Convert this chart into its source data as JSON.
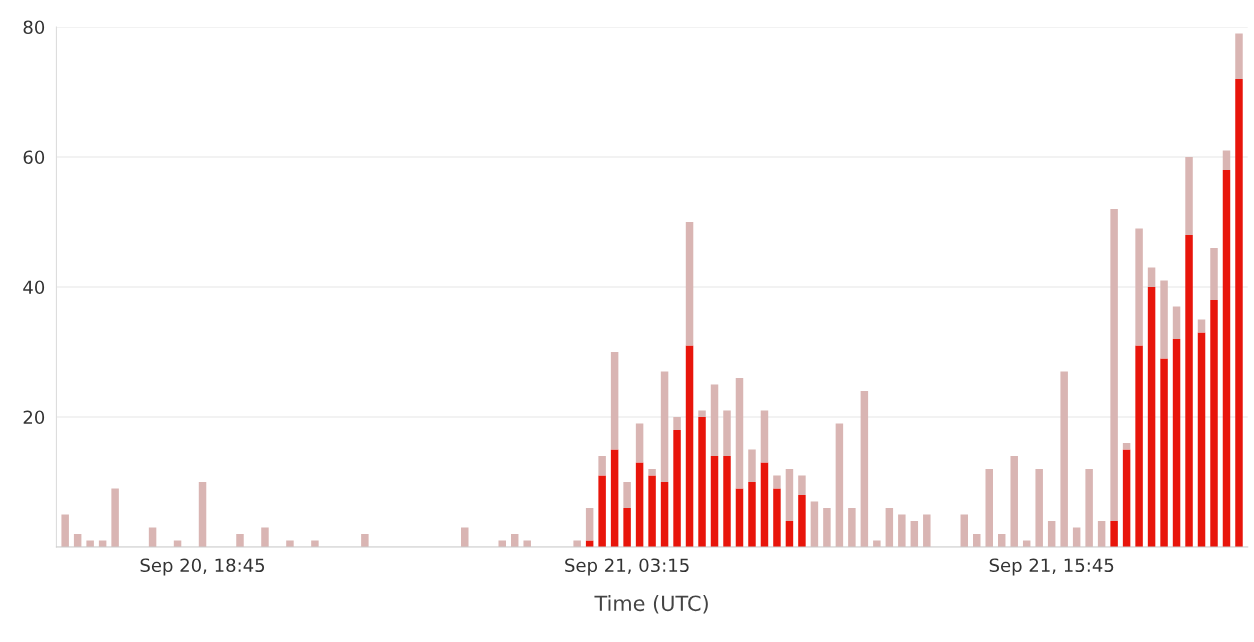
{
  "chart_data": {
    "type": "bar",
    "stacked": true,
    "xlabel": "Time (UTC)",
    "categories": [
      null,
      null,
      null,
      null,
      null,
      null,
      null,
      null,
      null,
      null,
      null,
      "Sep 20, 18:45",
      null,
      null,
      null,
      null,
      null,
      null,
      null,
      null,
      null,
      null,
      null,
      null,
      null,
      null,
      null,
      null,
      null,
      null,
      null,
      null,
      null,
      null,
      null,
      null,
      null,
      null,
      null,
      null,
      null,
      null,
      null,
      null,
      null,
      "Sep 21, 03:15",
      null,
      null,
      null,
      null,
      null,
      null,
      null,
      null,
      null,
      null,
      null,
      null,
      null,
      null,
      null,
      null,
      null,
      null,
      null,
      null,
      null,
      null,
      null,
      null,
      null,
      null,
      null,
      null,
      null,
      null,
      null,
      null,
      null,
      "Sep 21, 15:45",
      null,
      null,
      null,
      null,
      null,
      null,
      null,
      null,
      null,
      null,
      null,
      null,
      null,
      null,
      null
    ],
    "series": [
      {
        "color": "#e8150b",
        "values": [
          null,
          null,
          null,
          null,
          null,
          null,
          null,
          null,
          null,
          null,
          null,
          null,
          null,
          null,
          null,
          null,
          null,
          null,
          null,
          null,
          null,
          null,
          null,
          null,
          null,
          null,
          null,
          null,
          null,
          null,
          null,
          null,
          null,
          null,
          null,
          null,
          null,
          null,
          null,
          null,
          null,
          null,
          1,
          11,
          15,
          6,
          13,
          11,
          10,
          18,
          31,
          20,
          14,
          14,
          9,
          10,
          13,
          9,
          4,
          8,
          null,
          null,
          null,
          null,
          null,
          null,
          null,
          null,
          null,
          null,
          null,
          null,
          null,
          null,
          null,
          null,
          null,
          null,
          null,
          null,
          null,
          null,
          null,
          null,
          4,
          15,
          31,
          40,
          29,
          32,
          48,
          33,
          38,
          58,
          72
        ]
      },
      {
        "color": "#d9b5b3",
        "values": [
          5,
          2,
          1,
          1,
          9,
          null,
          null,
          3,
          null,
          1,
          null,
          10,
          null,
          null,
          2,
          null,
          3,
          null,
          1,
          null,
          1,
          null,
          null,
          null,
          2,
          null,
          null,
          null,
          null,
          null,
          null,
          null,
          3,
          null,
          null,
          1,
          2,
          1,
          null,
          null,
          null,
          1,
          5,
          3,
          15,
          4,
          6,
          1,
          17,
          2,
          19,
          1,
          11,
          7,
          17,
          5,
          8,
          2,
          8,
          3,
          7,
          6,
          19,
          6,
          24,
          1,
          6,
          5,
          4,
          5,
          null,
          null,
          5,
          2,
          12,
          2,
          14,
          1,
          12,
          4,
          27,
          3,
          12,
          4,
          48,
          1,
          18,
          3,
          12,
          5,
          12,
          2,
          8,
          3,
          7
        ]
      }
    ],
    "ylim": [
      0,
      80
    ],
    "yticks": [
      {
        "value": 0,
        "label": null
      },
      20,
      40,
      60,
      80
    ],
    "grid": "y"
  }
}
